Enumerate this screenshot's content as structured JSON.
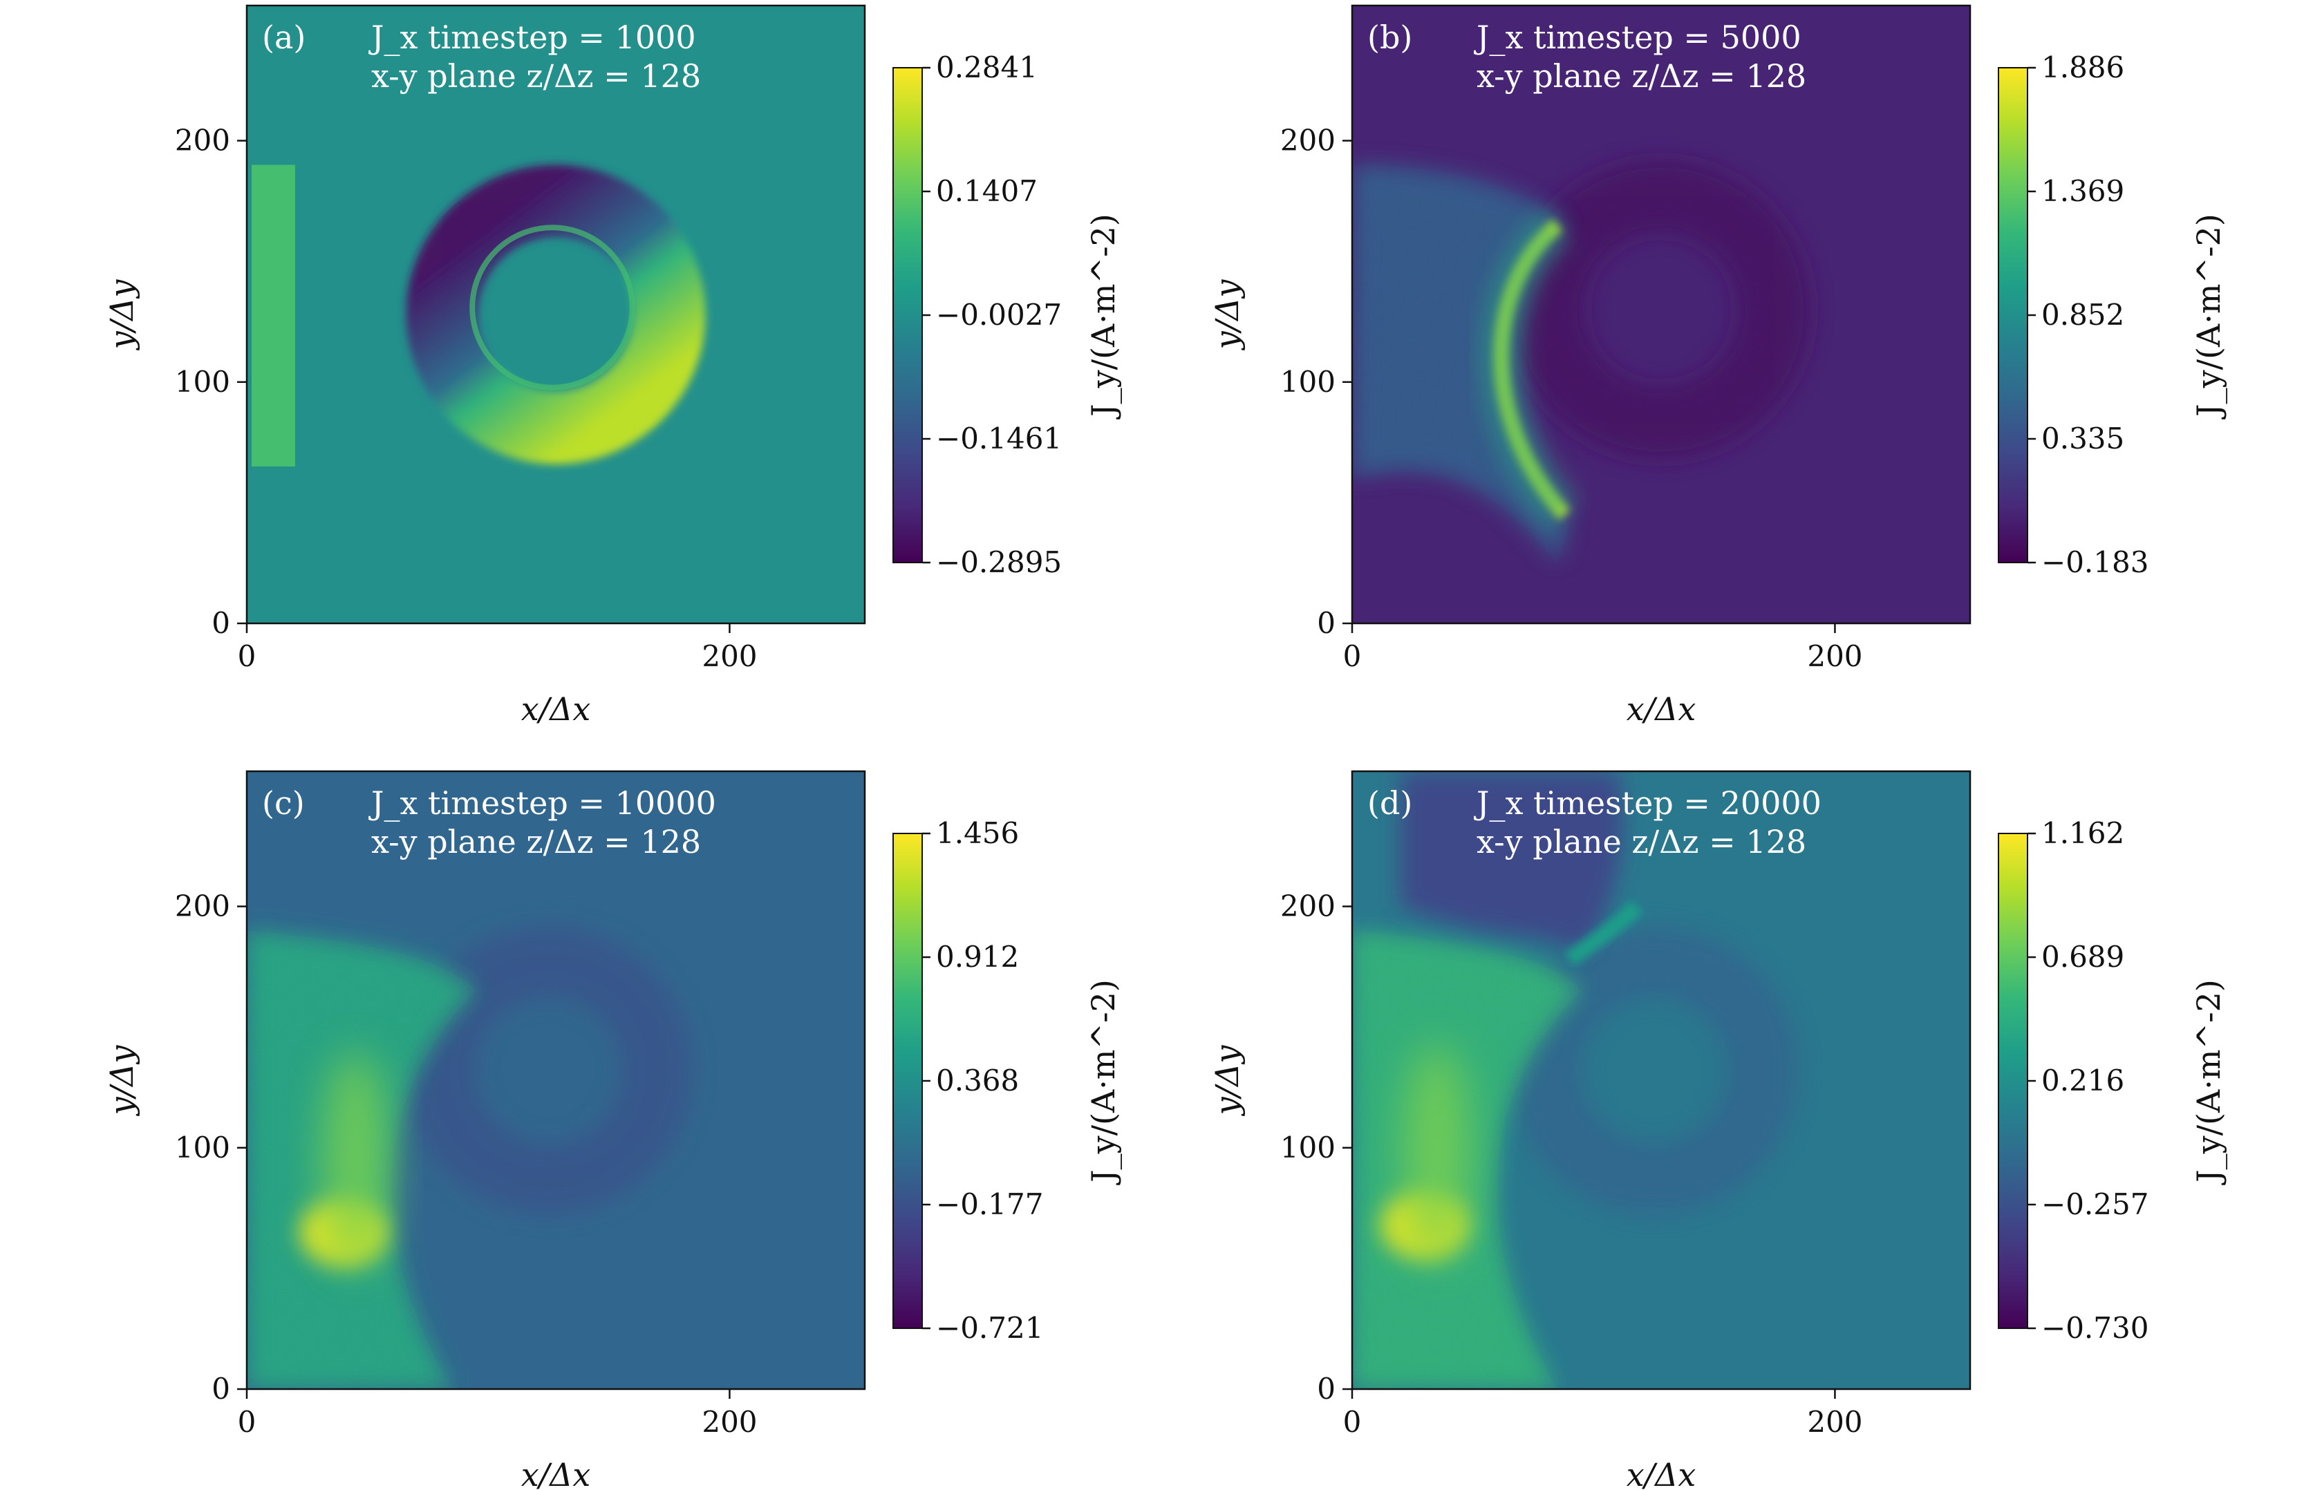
{
  "colors": {
    "viridis": [
      "#440154",
      "#482878",
      "#3e4989",
      "#31688e",
      "#26828e",
      "#1f9e89",
      "#35b779",
      "#6ece58",
      "#b5de2b",
      "#fde725"
    ],
    "frame": "#111111",
    "annotation_text": "#ffffff"
  },
  "chart_data": [
    {
      "type": "heatmap",
      "panel_label": "(a)",
      "title": "J_x timestep = 1000",
      "subtitle": "x-y plane z/Δz = 128",
      "xlabel": "x/Δx",
      "ylabel": "y/Δy",
      "xticks": [
        "0",
        "200"
      ],
      "yticks": [
        "0",
        "100",
        "200"
      ],
      "xlim": [
        0,
        256
      ],
      "ylim": [
        0,
        256
      ],
      "colorbar": {
        "label": "J_y/(A·m^-2)",
        "ticks": [
          "0.2841",
          "0.1407",
          "−0.0027",
          "−0.1461",
          "−0.2895"
        ],
        "range": [
          -0.2895,
          0.2841
        ]
      },
      "background_level": 0.5,
      "features": [
        {
          "kind": "ring",
          "cx": 128,
          "cy": 128,
          "r_inner": 32,
          "r_outer": 62,
          "low_side_level": 0.05,
          "high_side_level": 0.9
        },
        {
          "kind": "strip",
          "x": [
            2,
            20
          ],
          "y": [
            65,
            190
          ],
          "level": 0.7
        }
      ]
    },
    {
      "type": "heatmap",
      "panel_label": "(b)",
      "title": "J_x timestep = 5000",
      "subtitle": "x-y plane z/Δz = 128",
      "xlabel": "x/Δx",
      "ylabel": "y/Δy",
      "xticks": [
        "0",
        "200"
      ],
      "yticks": [
        "0",
        "100",
        "200"
      ],
      "xlim": [
        0,
        256
      ],
      "ylim": [
        0,
        256
      ],
      "colorbar": {
        "label": "J_y/(A·m^-2)",
        "ticks": [
          "1.886",
          "1.369",
          "0.852",
          "0.335",
          "−0.183"
        ],
        "range": [
          -0.183,
          1.886
        ]
      },
      "background_level": 0.1,
      "features": [
        {
          "kind": "ring",
          "cx": 128,
          "cy": 130,
          "r_inner": 32,
          "r_outer": 62,
          "level": 0.05
        },
        {
          "kind": "plume",
          "level": 0.3
        },
        {
          "kind": "arc",
          "level": 0.9
        }
      ]
    },
    {
      "type": "heatmap",
      "panel_label": "(c)",
      "title": "J_x timestep = 10000",
      "subtitle": "x-y plane z/Δz = 128",
      "xlabel": "x/Δx",
      "ylabel": "y/Δy",
      "xticks": [
        "0",
        "200"
      ],
      "yticks": [
        "0",
        "100",
        "200"
      ],
      "xlim": [
        0,
        256
      ],
      "ylim": [
        0,
        256
      ],
      "colorbar": {
        "label": "J_y/(A·m^-2)",
        "ticks": [
          "1.456",
          "0.912",
          "0.368",
          "−0.177",
          "−0.721"
        ],
        "range": [
          -0.721,
          1.456
        ]
      },
      "background_level": 0.33,
      "features": [
        {
          "kind": "ring",
          "cx": 125,
          "cy": 132,
          "r_inner": 30,
          "r_outer": 60,
          "level": 0.27
        },
        {
          "kind": "plume",
          "level": 0.6
        },
        {
          "kind": "hotspot",
          "cx": 40,
          "cy": 65,
          "level": 0.95
        }
      ]
    },
    {
      "type": "heatmap",
      "panel_label": "(d)",
      "title": "J_x timestep = 20000",
      "subtitle": "x-y plane z/Δz = 128",
      "xlabel": "x/Δx",
      "ylabel": "y/Δy",
      "xticks": [
        "0",
        "200"
      ],
      "yticks": [
        "0",
        "100",
        "200"
      ],
      "xlim": [
        0,
        256
      ],
      "ylim": [
        0,
        256
      ],
      "colorbar": {
        "label": "J_y/(A·m^-2)",
        "ticks": [
          "1.162",
          "0.689",
          "0.216",
          "−0.257",
          "−0.730"
        ],
        "range": [
          -0.73,
          1.162
        ]
      },
      "background_level": 0.4,
      "features": [
        {
          "kind": "ring",
          "cx": 125,
          "cy": 132,
          "r_inner": 30,
          "r_outer": 60,
          "level": 0.33
        },
        {
          "kind": "plume",
          "level": 0.65
        },
        {
          "kind": "hotspot",
          "cx": 30,
          "cy": 68,
          "level": 0.95
        },
        {
          "kind": "top_dark",
          "level": 0.22
        },
        {
          "kind": "jet",
          "level": 0.55
        }
      ]
    }
  ]
}
